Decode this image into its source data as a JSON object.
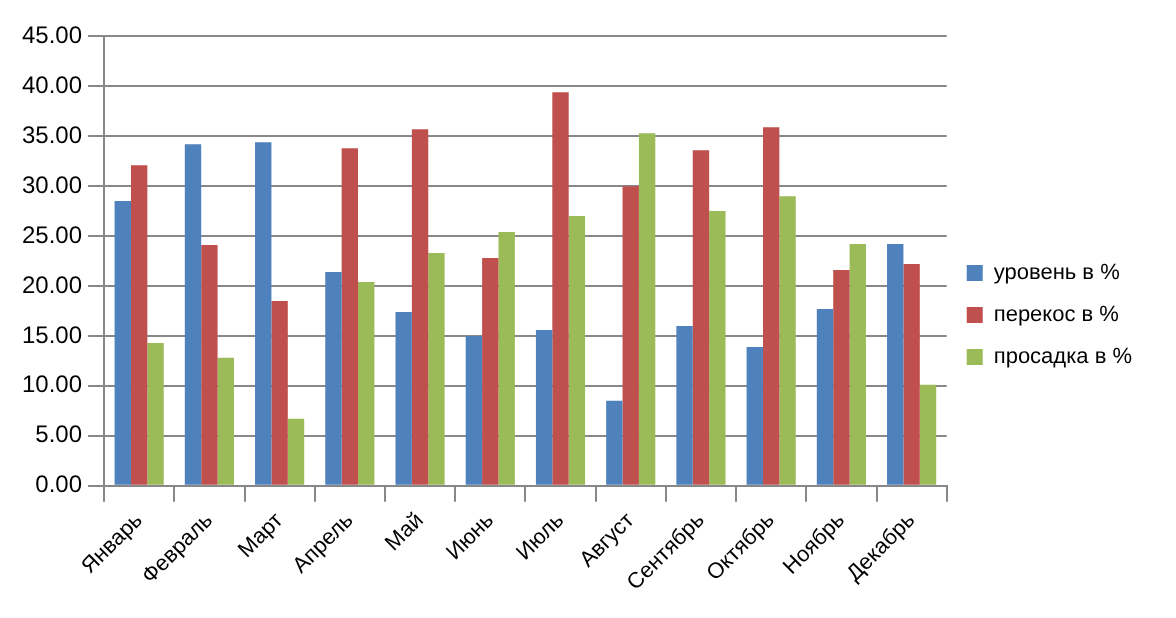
{
  "chart_data": {
    "type": "bar",
    "categories": [
      "Январь",
      "Февраль",
      "Март",
      "Апрель",
      "Май",
      "Июнь",
      "Июль",
      "Август",
      "Сентябрь",
      "Октябрь",
      "Ноябрь",
      "Декабрь"
    ],
    "series": [
      {
        "name": "уровень в %",
        "color": "#4f81bd",
        "values": [
          28.5,
          34.2,
          34.4,
          21.4,
          17.4,
          15.0,
          15.6,
          8.5,
          16.0,
          13.9,
          17.7,
          24.2
        ]
      },
      {
        "name": "перекос в %",
        "color": "#c0504d",
        "values": [
          32.1,
          24.1,
          18.5,
          33.8,
          35.7,
          22.8,
          39.4,
          30.0,
          33.6,
          35.9,
          21.6,
          22.2
        ]
      },
      {
        "name": "просадка в %",
        "color": "#9bbb59",
        "values": [
          14.3,
          12.8,
          6.7,
          20.4,
          23.3,
          25.4,
          27.0,
          35.3,
          27.5,
          29.0,
          24.2,
          10.1
        ]
      }
    ],
    "ylim": [
      0,
      45
    ],
    "yticks": [
      {
        "value": 0,
        "label": "0.00"
      },
      {
        "value": 5,
        "label": "5.00"
      },
      {
        "value": 10,
        "label": "10.00"
      },
      {
        "value": 15,
        "label": "15.00"
      },
      {
        "value": 20,
        "label": "20.00"
      },
      {
        "value": 25,
        "label": "25.00"
      },
      {
        "value": 30,
        "label": "30.00"
      },
      {
        "value": 35,
        "label": "35.00"
      },
      {
        "value": 40,
        "label": "40.00"
      },
      {
        "value": 45,
        "label": "45.00"
      }
    ],
    "grid": "y",
    "legend": "right"
  }
}
